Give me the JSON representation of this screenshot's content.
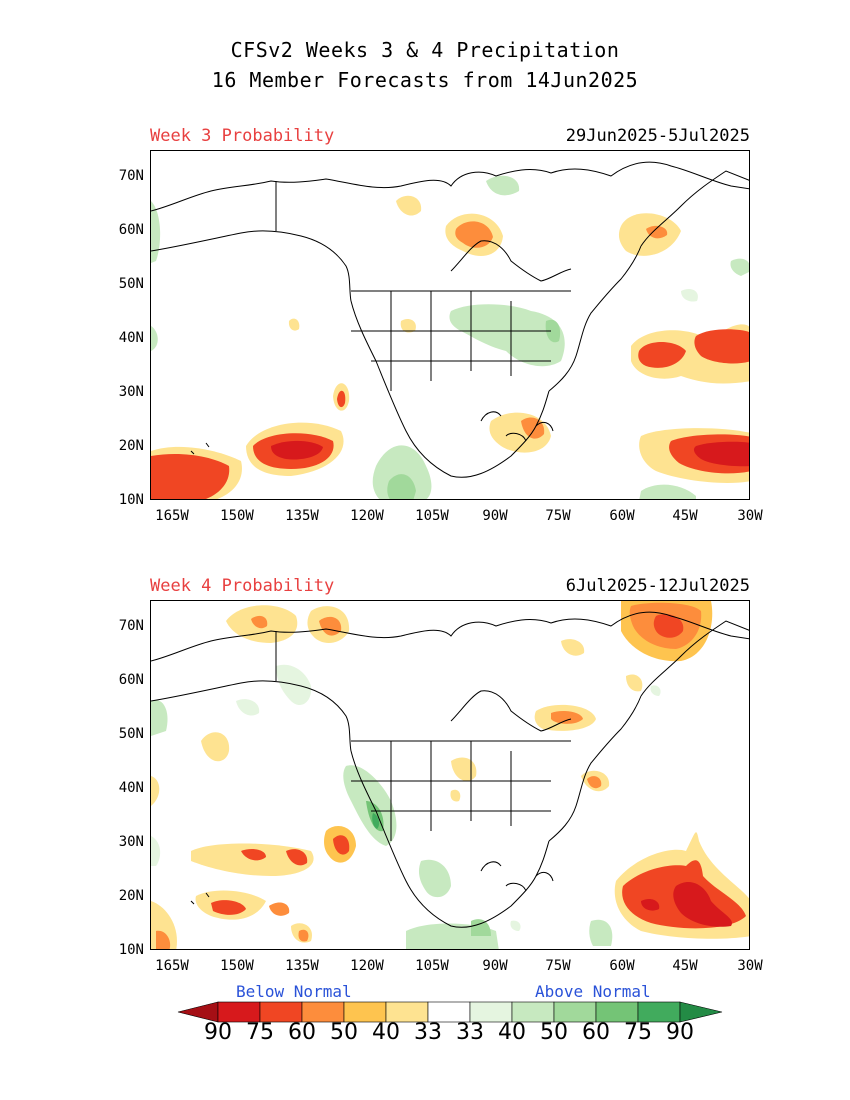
{
  "header": {
    "title_line1": "CFSv2 Weeks 3 & 4 Precipitation",
    "title_line2": "16 Member Forecasts from 14Jun2025"
  },
  "panels": [
    {
      "label": "Week 3 Probability",
      "dates": "29Jun2025-5Jul2025"
    },
    {
      "label": "Week 4 Probability",
      "dates": "6Jul2025-12Jul2025"
    }
  ],
  "lat_ticks": [
    "70N",
    "60N",
    "50N",
    "40N",
    "30N",
    "20N",
    "10N"
  ],
  "lon_ticks": [
    "165W",
    "150W",
    "135W",
    "120W",
    "105W",
    "90W",
    "75W",
    "60W",
    "45W",
    "30W"
  ],
  "legend": {
    "below_label": "Below Normal",
    "above_label": "Above Normal",
    "values": [
      "90",
      "75",
      "60",
      "50",
      "40",
      "33",
      "33",
      "40",
      "50",
      "60",
      "75",
      "90"
    ],
    "colors": [
      "#a50f15",
      "#d7191c",
      "#f04623",
      "#fd8d3c",
      "#fec44f",
      "#fee391",
      "#ffffff",
      "#e5f5e0",
      "#c7e9c0",
      "#a1d99b",
      "#74c476",
      "#41ab5d",
      "#238b45"
    ]
  },
  "colors": {
    "panel_label": "#e84040",
    "legend_caption": "#2a52d8"
  }
}
